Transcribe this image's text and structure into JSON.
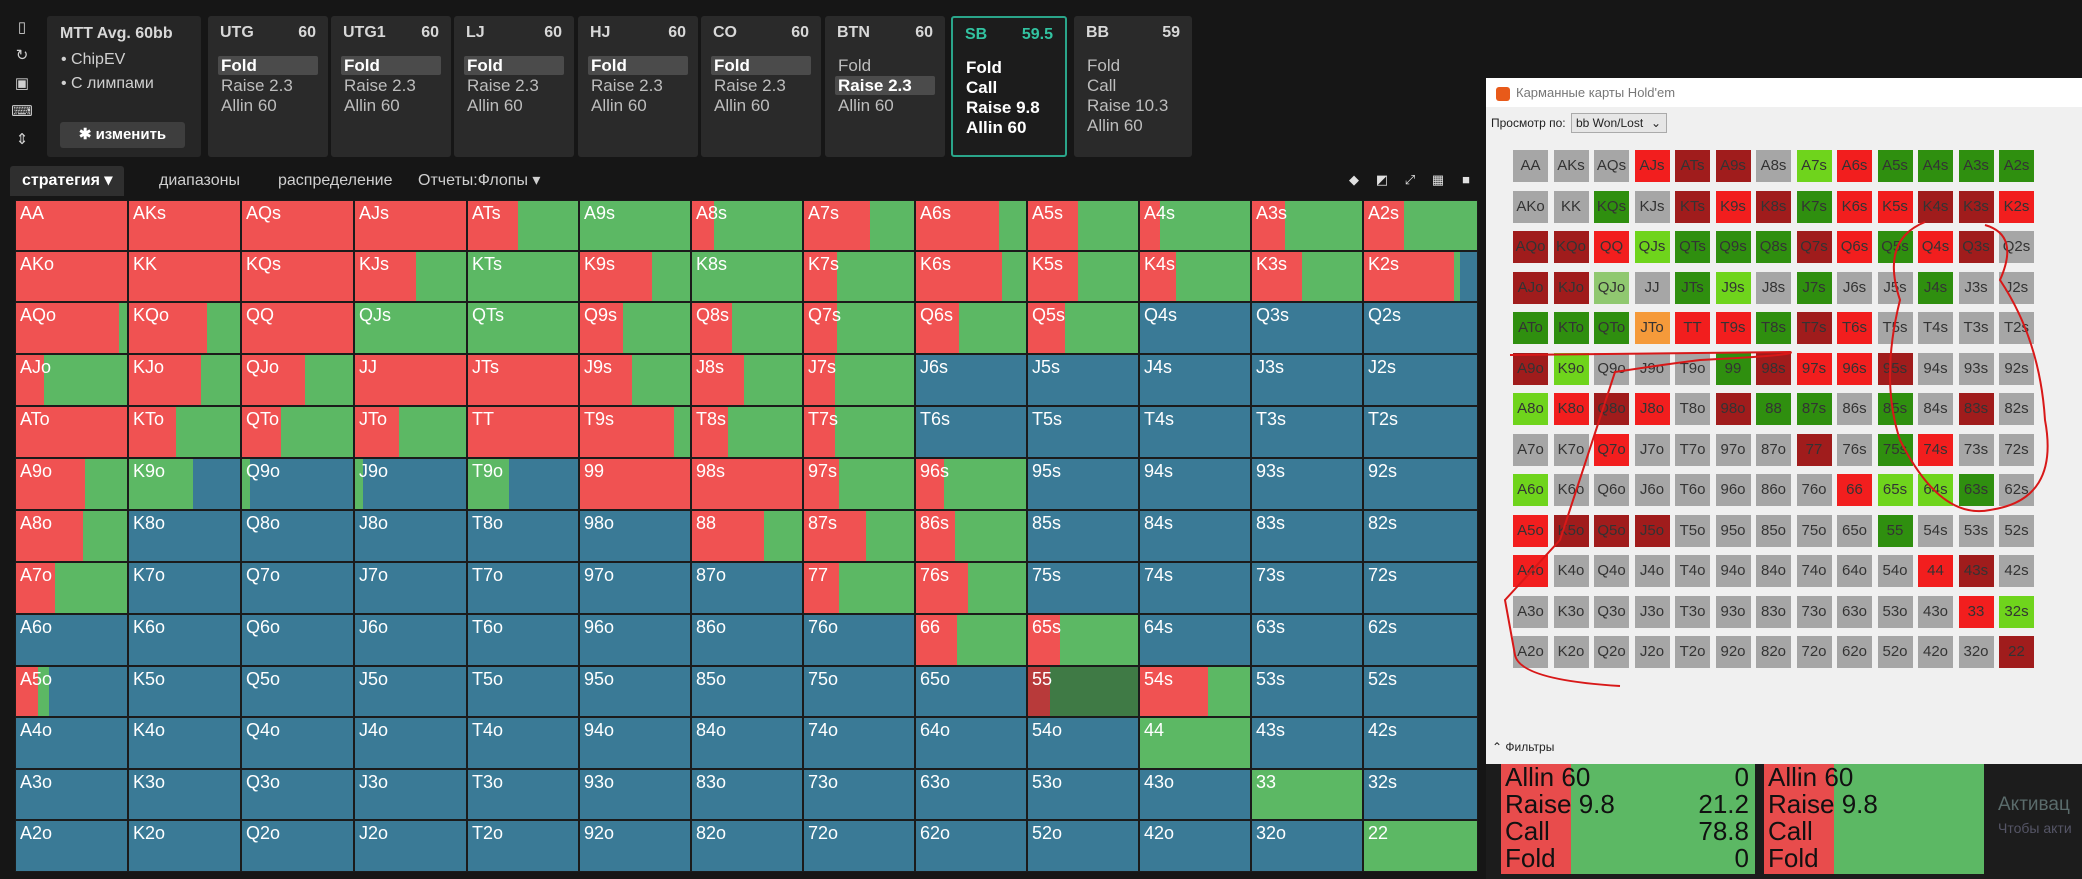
{
  "sidebar_icons": [
    "bookmark-icon",
    "refresh-icon",
    "save-icon",
    "gamepad-icon",
    "align-icon"
  ],
  "mtt": {
    "title": "MTT  Avg. 60bb",
    "bullet1": "•  ChipEV",
    "bullet2": "•  С лимпами",
    "button": "✱ изменить"
  },
  "positions": [
    {
      "name": "UTG",
      "stack": "60",
      "options": [
        "Fold",
        "Raise 2.3",
        "Allin 60"
      ],
      "selected": 0,
      "active": false
    },
    {
      "name": "UTG1",
      "stack": "60",
      "options": [
        "Fold",
        "Raise 2.3",
        "Allin 60"
      ],
      "selected": 0,
      "active": false
    },
    {
      "name": "LJ",
      "stack": "60",
      "options": [
        "Fold",
        "Raise 2.3",
        "Allin 60"
      ],
      "selected": 0,
      "active": false
    },
    {
      "name": "HJ",
      "stack": "60",
      "options": [
        "Fold",
        "Raise 2.3",
        "Allin 60"
      ],
      "selected": 0,
      "active": false
    },
    {
      "name": "CO",
      "stack": "60",
      "options": [
        "Fold",
        "Raise 2.3",
        "Allin 60"
      ],
      "selected": 0,
      "active": false
    },
    {
      "name": "BTN",
      "stack": "60",
      "options": [
        "Fold",
        "Raise 2.3",
        "Allin 60"
      ],
      "selected": 1,
      "active": false
    },
    {
      "name": "SB",
      "stack": "59.5",
      "options": [
        "Fold",
        "Call",
        "Raise 9.8",
        "Allin 60"
      ],
      "selected": -1,
      "active": true
    },
    {
      "name": "BB",
      "stack": "59",
      "options": [
        "Fold",
        "Call",
        "Raise 10.3",
        "Allin 60"
      ],
      "selected": -1,
      "active": false
    }
  ],
  "tabs": [
    "стратегия ▾",
    "диапазоны",
    "распределение",
    "Отчеты:Флопы ▾"
  ],
  "view_icons": [
    "cube-icon",
    "half-square-icon",
    "expand-icon",
    "grid-icon",
    "square-icon"
  ],
  "colors": {
    "raise": "#f05252",
    "call": "#5cb864",
    "fold": "#3a7a96",
    "allin": "#b83a3a",
    "allin_call": "#3f7a45"
  },
  "grid": [
    [
      "AA",
      "AKs",
      "AQs",
      "AJs",
      "ATs",
      "A9s",
      "A8s",
      "A7s",
      "A6s",
      "A5s",
      "A4s",
      "A3s",
      "A2s"
    ],
    [
      "AKo",
      "KK",
      "KQs",
      "KJs",
      "KTs",
      "K9s",
      "K8s",
      "K7s",
      "K6s",
      "K5s",
      "K4s",
      "K3s",
      "K2s"
    ],
    [
      "AQo",
      "KQo",
      "QQ",
      "QJs",
      "QTs",
      "Q9s",
      "Q8s",
      "Q7s",
      "Q6s",
      "Q5s",
      "Q4s",
      "Q3s",
      "Q2s"
    ],
    [
      "AJo",
      "KJo",
      "QJo",
      "JJ",
      "JTs",
      "J9s",
      "J8s",
      "J7s",
      "J6s",
      "J5s",
      "J4s",
      "J3s",
      "J2s"
    ],
    [
      "ATo",
      "KTo",
      "QTo",
      "JTo",
      "TT",
      "T9s",
      "T8s",
      "T7s",
      "T6s",
      "T5s",
      "T4s",
      "T3s",
      "T2s"
    ],
    [
      "A9o",
      "K9o",
      "Q9o",
      "J9o",
      "T9o",
      "99",
      "98s",
      "97s",
      "96s",
      "95s",
      "94s",
      "93s",
      "92s"
    ],
    [
      "A8o",
      "K8o",
      "Q8o",
      "J8o",
      "T8o",
      "98o",
      "88",
      "87s",
      "86s",
      "85s",
      "84s",
      "83s",
      "82s"
    ],
    [
      "A7o",
      "K7o",
      "Q7o",
      "J7o",
      "T7o",
      "97o",
      "87o",
      "77",
      "76s",
      "75s",
      "74s",
      "73s",
      "72s"
    ],
    [
      "A6o",
      "K6o",
      "Q6o",
      "J6o",
      "T6o",
      "96o",
      "86o",
      "76o",
      "66",
      "65s",
      "64s",
      "63s",
      "62s"
    ],
    [
      "A5o",
      "K5o",
      "Q5o",
      "J5o",
      "T5o",
      "95o",
      "85o",
      "75o",
      "65o",
      "55",
      "54s",
      "53s",
      "52s"
    ],
    [
      "A4o",
      "K4o",
      "Q4o",
      "J4o",
      "T4o",
      "94o",
      "84o",
      "74o",
      "64o",
      "54o",
      "44",
      "43s",
      "42s"
    ],
    [
      "A3o",
      "K3o",
      "Q3o",
      "J3o",
      "T3o",
      "93o",
      "83o",
      "73o",
      "63o",
      "53o",
      "43o",
      "33",
      "32s"
    ],
    [
      "A2o",
      "K2o",
      "Q2o",
      "J2o",
      "T2o",
      "92o",
      "82o",
      "72o",
      "62o",
      "52o",
      "42o",
      "32o",
      "22"
    ]
  ],
  "strategy": [
    [
      [
        1,
        0,
        0,
        0
      ],
      [
        1,
        0,
        0,
        0
      ],
      [
        1,
        0,
        0,
        0
      ],
      [
        1,
        0,
        0,
        0
      ],
      [
        0.45,
        0.55,
        0,
        0
      ],
      [
        0,
        1,
        0,
        0
      ],
      [
        0.2,
        0.8,
        0,
        0
      ],
      [
        0.6,
        0.4,
        0,
        0
      ],
      [
        0.75,
        0.25,
        0,
        0
      ],
      [
        0.45,
        0.55,
        0,
        0
      ],
      [
        0.18,
        0.82,
        0,
        0
      ],
      [
        0.3,
        0.7,
        0,
        0
      ],
      [
        0.35,
        0.65,
        0,
        0
      ]
    ],
    [
      [
        1,
        0,
        0,
        0
      ],
      [
        1,
        0,
        0,
        0
      ],
      [
        1,
        0,
        0,
        0
      ],
      [
        0.55,
        0.45,
        0,
        0
      ],
      [
        0,
        1,
        0,
        0
      ],
      [
        0.65,
        0.35,
        0,
        0
      ],
      [
        0,
        1,
        0,
        0
      ],
      [
        0.3,
        0.7,
        0,
        0
      ],
      [
        0.78,
        0.22,
        0,
        0
      ],
      [
        0.45,
        0.55,
        0,
        0
      ],
      [
        0.33,
        0.67,
        0,
        0
      ],
      [
        0.45,
        0.55,
        0,
        0
      ],
      [
        0.8,
        0.05,
        0.15,
        0
      ]
    ],
    [
      [
        0.93,
        0.07,
        0,
        0
      ],
      [
        0.7,
        0.3,
        0,
        0
      ],
      [
        1,
        0,
        0,
        0
      ],
      [
        0,
        1,
        0,
        0
      ],
      [
        0,
        1,
        0,
        0
      ],
      [
        0.39,
        0.61,
        0,
        0
      ],
      [
        0.36,
        0.64,
        0,
        0
      ],
      [
        0.3,
        0.7,
        0,
        0
      ],
      [
        0.39,
        0.61,
        0,
        0
      ],
      [
        0.34,
        0.66,
        0,
        0
      ],
      [
        0,
        0,
        1,
        0
      ],
      [
        0,
        0,
        1,
        0
      ],
      [
        0,
        0,
        1,
        0
      ]
    ],
    [
      [
        0.25,
        0.75,
        0,
        0
      ],
      [
        0.65,
        0.35,
        0,
        0
      ],
      [
        0.57,
        0.43,
        0,
        0
      ],
      [
        1,
        0,
        0,
        0
      ],
      [
        1,
        0,
        0,
        0
      ],
      [
        0.47,
        0.53,
        0,
        0
      ],
      [
        0.47,
        0.53,
        0,
        0
      ],
      [
        0.28,
        0.72,
        0,
        0
      ],
      [
        0,
        0,
        1,
        0
      ],
      [
        0,
        0,
        1,
        0
      ],
      [
        0,
        0,
        1,
        0
      ],
      [
        0,
        0,
        1,
        0
      ],
      [
        0,
        0,
        1,
        0
      ]
    ],
    [
      [
        1,
        0,
        0,
        0
      ],
      [
        0.42,
        0.58,
        0,
        0
      ],
      [
        0.35,
        0.65,
        0,
        0
      ],
      [
        0.4,
        0.6,
        0,
        0
      ],
      [
        1,
        0,
        0,
        0
      ],
      [
        0.85,
        0.15,
        0,
        0
      ],
      [
        0.33,
        0.67,
        0,
        0
      ],
      [
        0.28,
        0.72,
        0,
        0
      ],
      [
        0,
        0,
        1,
        0
      ],
      [
        0,
        0,
        1,
        0
      ],
      [
        0,
        0,
        1,
        0
      ],
      [
        0,
        0,
        1,
        0
      ],
      [
        0,
        0,
        1,
        0
      ]
    ],
    [
      [
        0.62,
        0.38,
        0,
        0
      ],
      [
        0,
        0.58,
        0.42,
        0
      ],
      [
        0,
        0.07,
        0.93,
        0
      ],
      [
        0,
        0.07,
        0.93,
        0
      ],
      [
        0,
        0.37,
        0.63,
        0
      ],
      [
        1,
        0,
        0,
        0
      ],
      [
        1,
        0,
        0,
        0
      ],
      [
        0.32,
        0.68,
        0,
        0
      ],
      [
        0.25,
        0.75,
        0,
        0
      ],
      [
        0,
        0,
        1,
        0
      ],
      [
        0,
        0,
        1,
        0
      ],
      [
        0,
        0,
        1,
        0
      ],
      [
        0,
        0,
        1,
        0
      ]
    ],
    [
      [
        0.6,
        0.4,
        0,
        0
      ],
      [
        0,
        0,
        1,
        0
      ],
      [
        0,
        0,
        1,
        0
      ],
      [
        0,
        0,
        1,
        0
      ],
      [
        0,
        0,
        1,
        0
      ],
      [
        0,
        0,
        1,
        0
      ],
      [
        0.65,
        0.35,
        0,
        0
      ],
      [
        0.56,
        0.44,
        0,
        0
      ],
      [
        0.35,
        0.65,
        0,
        0
      ],
      [
        0,
        0,
        1,
        0
      ],
      [
        0,
        0,
        1,
        0
      ],
      [
        0,
        0,
        1,
        0
      ],
      [
        0,
        0,
        1,
        0
      ]
    ],
    [
      [
        0.35,
        0.65,
        0,
        0
      ],
      [
        0,
        0,
        1,
        0
      ],
      [
        0,
        0,
        1,
        0
      ],
      [
        0,
        0,
        1,
        0
      ],
      [
        0,
        0,
        1,
        0
      ],
      [
        0,
        0,
        1,
        0
      ],
      [
        0,
        0,
        1,
        0
      ],
      [
        0.32,
        0.68,
        0,
        0
      ],
      [
        0.47,
        0.53,
        0,
        0
      ],
      [
        0,
        0,
        1,
        0
      ],
      [
        0,
        0,
        1,
        0
      ],
      [
        0,
        0,
        1,
        0
      ],
      [
        0,
        0,
        1,
        0
      ]
    ],
    [
      [
        0,
        0,
        1,
        0
      ],
      [
        0,
        0,
        1,
        0
      ],
      [
        0,
        0,
        1,
        0
      ],
      [
        0,
        0,
        1,
        0
      ],
      [
        0,
        0,
        1,
        0
      ],
      [
        0,
        0,
        1,
        0
      ],
      [
        0,
        0,
        1,
        0
      ],
      [
        0,
        0,
        1,
        0
      ],
      [
        0.37,
        0.63,
        0,
        0
      ],
      [
        0.29,
        0.71,
        0,
        0
      ],
      [
        0,
        0,
        1,
        0
      ],
      [
        0,
        0,
        1,
        0
      ],
      [
        0,
        0,
        1,
        0
      ]
    ],
    [
      [
        0.2,
        0.1,
        0.7,
        0
      ],
      [
        0,
        0,
        1,
        0
      ],
      [
        0,
        0,
        1,
        0
      ],
      [
        0,
        0,
        1,
        0
      ],
      [
        0,
        0,
        1,
        0
      ],
      [
        0,
        0,
        1,
        0
      ],
      [
        0,
        0,
        1,
        0
      ],
      [
        0,
        0,
        1,
        0
      ],
      [
        0,
        0,
        1,
        0
      ],
      [
        0.2,
        0,
        0,
        0.8
      ],
      [
        0.62,
        0.38,
        0,
        0
      ],
      [
        0,
        0,
        1,
        0
      ],
      [
        0,
        0,
        1,
        0
      ]
    ],
    [
      [
        0,
        0,
        1,
        0
      ],
      [
        0,
        0,
        1,
        0
      ],
      [
        0,
        0,
        1,
        0
      ],
      [
        0,
        0,
        1,
        0
      ],
      [
        0,
        0,
        1,
        0
      ],
      [
        0,
        0,
        1,
        0
      ],
      [
        0,
        0,
        1,
        0
      ],
      [
        0,
        0,
        1,
        0
      ],
      [
        0,
        0,
        1,
        0
      ],
      [
        0,
        0,
        1,
        0
      ],
      [
        0,
        1,
        0,
        0
      ],
      [
        0,
        0,
        1,
        0
      ],
      [
        0,
        0,
        1,
        0
      ]
    ],
    [
      [
        0,
        0,
        1,
        0
      ],
      [
        0,
        0,
        1,
        0
      ],
      [
        0,
        0,
        1,
        0
      ],
      [
        0,
        0,
        1,
        0
      ],
      [
        0,
        0,
        1,
        0
      ],
      [
        0,
        0,
        1,
        0
      ],
      [
        0,
        0,
        1,
        0
      ],
      [
        0,
        0,
        1,
        0
      ],
      [
        0,
        0,
        1,
        0
      ],
      [
        0,
        0,
        1,
        0
      ],
      [
        0,
        0,
        1,
        0
      ],
      [
        0,
        1,
        0,
        0
      ],
      [
        0,
        0,
        1,
        0
      ]
    ],
    [
      [
        0,
        0,
        1,
        0
      ],
      [
        0,
        0,
        1,
        0
      ],
      [
        0,
        0,
        1,
        0
      ],
      [
        0,
        0,
        1,
        0
      ],
      [
        0,
        0,
        1,
        0
      ],
      [
        0,
        0,
        1,
        0
      ],
      [
        0,
        0,
        1,
        0
      ],
      [
        0,
        0,
        1,
        0
      ],
      [
        0,
        0,
        1,
        0
      ],
      [
        0,
        0,
        1,
        0
      ],
      [
        0,
        0,
        1,
        0
      ],
      [
        0,
        0,
        1,
        0
      ],
      [
        0,
        1,
        0,
        0
      ]
    ]
  ],
  "window": {
    "title": "Карманные карты Hold'em",
    "view_by_label": "Просмотр по:",
    "view_by_value": "bb Won/Lost",
    "filters": "Фильтры"
  },
  "win_colors": {
    "g": "#a6a6a6",
    "dr": "#a01c1c",
    "r": "#f21e1e",
    "dg": "#2f8f0f",
    "lg": "#6fd41c",
    "o": "#f59a3a",
    "lgr": "#90c870"
  },
  "win_grid_colors": [
    [
      "g",
      "g",
      "g",
      "r",
      "dr",
      "dr",
      "g",
      "lg",
      "r",
      "dg",
      "dg",
      "dg",
      "dg"
    ],
    [
      "g",
      "g",
      "dg",
      "g",
      "dr",
      "r",
      "dr",
      "dg",
      "r",
      "r",
      "dr",
      "dr",
      "r"
    ],
    [
      "dr",
      "dr",
      "r",
      "lg",
      "dg",
      "dg",
      "dg",
      "dr",
      "r",
      "dg",
      "r",
      "dr",
      "g"
    ],
    [
      "dr",
      "dr",
      "lgr",
      "g",
      "dg",
      "lg",
      "g",
      "dg",
      "g",
      "g",
      "dg",
      "g",
      "g"
    ],
    [
      "dg",
      "dg",
      "dg",
      "o",
      "r",
      "r",
      "dg",
      "dr",
      "r",
      "g",
      "g",
      "g",
      "g"
    ],
    [
      "dr",
      "lg",
      "g",
      "g",
      "g",
      "dg",
      "dr",
      "r",
      "r",
      "dr",
      "g",
      "g",
      "g"
    ],
    [
      "lg",
      "r",
      "dr",
      "r",
      "g",
      "dr",
      "dg",
      "dg",
      "g",
      "dg",
      "g",
      "dr",
      "g"
    ],
    [
      "g",
      "g",
      "r",
      "g",
      "g",
      "g",
      "g",
      "dr",
      "g",
      "dg",
      "r",
      "g",
      "g"
    ],
    [
      "lg",
      "g",
      "g",
      "g",
      "g",
      "g",
      "g",
      "g",
      "r",
      "lg",
      "lg",
      "dg",
      "g"
    ],
    [
      "r",
      "dr",
      "dr",
      "dr",
      "g",
      "g",
      "g",
      "g",
      "g",
      "dg",
      "g",
      "g",
      "g"
    ],
    [
      "r",
      "g",
      "g",
      "g",
      "g",
      "g",
      "g",
      "g",
      "g",
      "g",
      "r",
      "dr",
      "g"
    ],
    [
      "g",
      "g",
      "g",
      "g",
      "g",
      "g",
      "g",
      "g",
      "g",
      "g",
      "g",
      "r",
      "lg"
    ],
    [
      "g",
      "g",
      "g",
      "g",
      "g",
      "g",
      "g",
      "g",
      "g",
      "g",
      "g",
      "g",
      "dr"
    ]
  ],
  "summary": [
    {
      "rows": [
        [
          "Allin 60",
          "0"
        ],
        [
          "Raise 9.8",
          "21.2"
        ],
        [
          "Call",
          "78.8"
        ],
        [
          "Fold",
          "0"
        ]
      ]
    },
    {
      "rows": [
        [
          "Allin 60",
          ""
        ],
        [
          "Raise 9.8",
          ""
        ],
        [
          "Call",
          ""
        ],
        [
          "Fold",
          ""
        ]
      ]
    }
  ],
  "watermark": {
    "line1": "Активац",
    "line2": "Чтобы акти"
  }
}
